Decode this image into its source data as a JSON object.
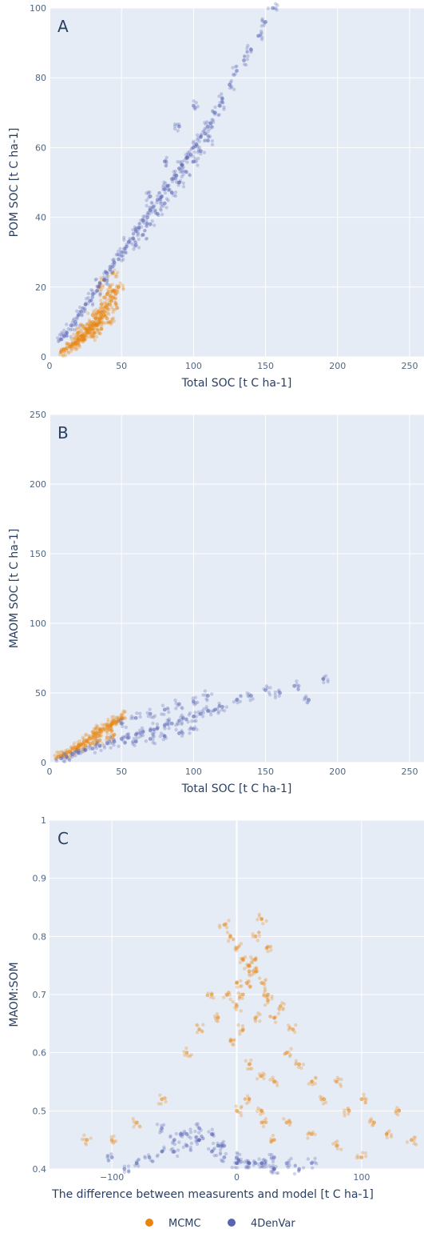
{
  "colors": {
    "mcmc": "#e8850f",
    "denvar": "#5a64b4",
    "plot_bg": "#e5ecf6",
    "grid": "#ffffff"
  },
  "legend": {
    "items": [
      {
        "label": "MCMC",
        "color": "#e8850f"
      },
      {
        "label": "4DenVar",
        "color": "#5a64b4"
      }
    ],
    "placement": "bottom-center"
  },
  "chart_data": [
    {
      "type": "scatter",
      "panel_label": "A",
      "xlabel": "Total SOC [t C ha-1]",
      "ylabel": "POM SOC [t C ha-1]",
      "xlim": [
        0,
        260
      ],
      "ylim": [
        0,
        100
      ],
      "xticks": [
        0,
        50,
        100,
        150,
        200,
        250
      ],
      "yticks": [
        0,
        20,
        40,
        60,
        80,
        100
      ],
      "grid": true,
      "series": [
        {
          "name": "MCMC",
          "color": "#e8850f",
          "x": [
            8,
            10,
            12,
            14,
            15,
            16,
            18,
            20,
            20,
            22,
            22,
            24,
            25,
            26,
            26,
            28,
            28,
            30,
            30,
            30,
            32,
            32,
            34,
            34,
            35,
            36,
            36,
            38,
            38,
            40,
            40,
            42,
            42,
            44,
            45,
            46,
            48,
            20,
            25,
            30,
            35,
            40,
            18,
            22,
            28,
            33,
            38,
            43,
            24,
            30,
            36,
            42,
            47,
            34,
            38,
            44
          ],
          "y": [
            1.5,
            2,
            2.5,
            3,
            3,
            3.5,
            4,
            4,
            5,
            5,
            6,
            6,
            6,
            7,
            8,
            7,
            9,
            8,
            10,
            12,
            9,
            11,
            10,
            13,
            11,
            12,
            15,
            13,
            17,
            14,
            18,
            15,
            20,
            17,
            19,
            18,
            20,
            7,
            8,
            9,
            10,
            11,
            4,
            6,
            8,
            9,
            12,
            16,
            5,
            6,
            8,
            10,
            14,
            20,
            22,
            24
          ]
        },
        {
          "name": "4DenVar",
          "color": "#5a64b4",
          "x": [
            8,
            10,
            12,
            15,
            18,
            20,
            22,
            25,
            28,
            30,
            33,
            35,
            38,
            40,
            42,
            45,
            48,
            50,
            52,
            55,
            58,
            60,
            62,
            65,
            68,
            70,
            72,
            75,
            78,
            80,
            82,
            85,
            88,
            90,
            92,
            95,
            98,
            100,
            102,
            105,
            108,
            110,
            112,
            115,
            118,
            120,
            125,
            130,
            135,
            140,
            145,
            150,
            155,
            60,
            65,
            70,
            75,
            80,
            85,
            90,
            95,
            100,
            105,
            110,
            70,
            80,
            90,
            100
          ],
          "y": [
            5,
            6,
            7,
            9,
            10,
            12,
            13,
            15,
            16,
            18,
            19,
            21,
            22,
            24,
            25,
            27,
            28,
            30,
            31,
            33,
            34,
            36,
            37,
            39,
            40,
            42,
            43,
            45,
            46,
            48,
            49,
            51,
            52,
            54,
            55,
            57,
            58,
            60,
            61,
            63,
            64,
            66,
            67,
            70,
            72,
            74,
            78,
            82,
            85,
            88,
            92,
            96,
            100,
            32,
            35,
            38,
            41,
            44,
            47,
            50,
            53,
            56,
            59,
            62,
            46,
            56,
            66,
            72
          ]
        }
      ]
    },
    {
      "type": "scatter",
      "panel_label": "B",
      "xlabel": "Total SOC [t C ha-1]",
      "ylabel": "MAOM SOC [t C ha-1]",
      "xlim": [
        0,
        260
      ],
      "ylim": [
        0,
        250
      ],
      "xticks": [
        0,
        50,
        100,
        150,
        200,
        250
      ],
      "yticks": [
        0,
        50,
        100,
        150,
        200,
        250
      ],
      "grid": true,
      "series": [
        {
          "name": "MCMC",
          "color": "#e8850f",
          "x": [
            6,
            8,
            10,
            12,
            14,
            16,
            18,
            20,
            22,
            24,
            26,
            28,
            30,
            32,
            34,
            36,
            38,
            40,
            42,
            44,
            46,
            48,
            50,
            20,
            25,
            30,
            35,
            40,
            45,
            30,
            35,
            40,
            45,
            50
          ],
          "y": [
            4,
            5,
            6,
            7,
            8,
            10,
            11,
            12,
            13,
            15,
            16,
            17,
            18,
            20,
            21,
            22,
            24,
            25,
            26,
            28,
            29,
            30,
            32,
            10,
            12,
            14,
            16,
            18,
            20,
            22,
            24,
            27,
            30,
            34
          ]
        },
        {
          "name": "4DenVar",
          "color": "#5a64b4",
          "x": [
            8,
            12,
            16,
            20,
            25,
            30,
            35,
            40,
            45,
            50,
            55,
            60,
            65,
            70,
            75,
            80,
            85,
            90,
            95,
            100,
            105,
            110,
            115,
            120,
            130,
            140,
            150,
            160,
            170,
            180,
            190,
            60,
            70,
            80,
            90,
            100,
            50,
            60,
            70,
            80,
            90,
            100,
            110
          ],
          "y": [
            3,
            4,
            6,
            7,
            9,
            10,
            12,
            14,
            15,
            17,
            18,
            20,
            22,
            23,
            25,
            27,
            28,
            30,
            31,
            33,
            35,
            37,
            38,
            40,
            45,
            48,
            52,
            50,
            55,
            45,
            60,
            15,
            17,
            19,
            21,
            24,
            28,
            32,
            35,
            38,
            42,
            44,
            48
          ]
        }
      ]
    },
    {
      "type": "scatter",
      "panel_label": "C",
      "xlabel": "The difference between measurents and model [t C ha-1]",
      "ylabel": "MAOM:SOM",
      "xlim": [
        -150,
        150
      ],
      "ylim": [
        0.4,
        1
      ],
      "xticks": [
        -100,
        0,
        100
      ],
      "yticks": [
        0.4,
        0.5,
        0.6,
        0.7,
        0.8,
        0.9,
        1
      ],
      "grid": true,
      "series": [
        {
          "name": "MCMC",
          "color": "#e8850f",
          "x": [
            -10,
            -5,
            0,
            5,
            10,
            15,
            20,
            -8,
            0,
            8,
            16,
            24,
            -15,
            -5,
            5,
            15,
            25,
            35,
            45,
            10,
            20,
            30,
            40,
            50,
            60,
            70,
            80,
            90,
            100,
            110,
            120,
            130,
            140,
            20,
            40,
            60,
            80,
            100,
            -40,
            -60,
            -80,
            -100,
            -120,
            0,
            10,
            20,
            30,
            0,
            5,
            10,
            15,
            20,
            25,
            30,
            -20,
            -30
          ],
          "y": [
            0.82,
            0.8,
            0.78,
            0.76,
            0.75,
            0.8,
            0.83,
            0.7,
            0.68,
            0.72,
            0.74,
            0.78,
            0.66,
            0.62,
            0.64,
            0.66,
            0.7,
            0.68,
            0.64,
            0.58,
            0.56,
            0.55,
            0.6,
            0.58,
            0.55,
            0.52,
            0.55,
            0.5,
            0.52,
            0.48,
            0.46,
            0.5,
            0.45,
            0.5,
            0.48,
            0.46,
            0.44,
            0.42,
            0.6,
            0.52,
            0.48,
            0.45,
            0.45,
            0.5,
            0.52,
            0.48,
            0.45,
            0.72,
            0.7,
            0.74,
            0.76,
            0.72,
            0.69,
            0.66,
            0.7,
            0.64
          ]
        },
        {
          "name": "4DenVar",
          "color": "#5a64b4",
          "x": [
            -80,
            -70,
            -60,
            -50,
            -40,
            -30,
            -20,
            -10,
            0,
            10,
            20,
            30,
            40,
            -60,
            -45,
            -30,
            -15,
            0,
            15,
            30,
            -50,
            -40,
            -30,
            -20,
            -10,
            0,
            10,
            20,
            30,
            -90,
            -100,
            60,
            50
          ],
          "y": [
            0.41,
            0.42,
            0.43,
            0.45,
            0.46,
            0.47,
            0.46,
            0.44,
            0.42,
            0.41,
            0.41,
            0.42,
            0.41,
            0.47,
            0.46,
            0.45,
            0.44,
            0.41,
            0.41,
            0.4,
            0.43,
            0.44,
            0.45,
            0.43,
            0.42,
            0.41,
            0.41,
            0.41,
            0.4,
            0.4,
            0.42,
            0.41,
            0.4
          ]
        }
      ]
    }
  ]
}
